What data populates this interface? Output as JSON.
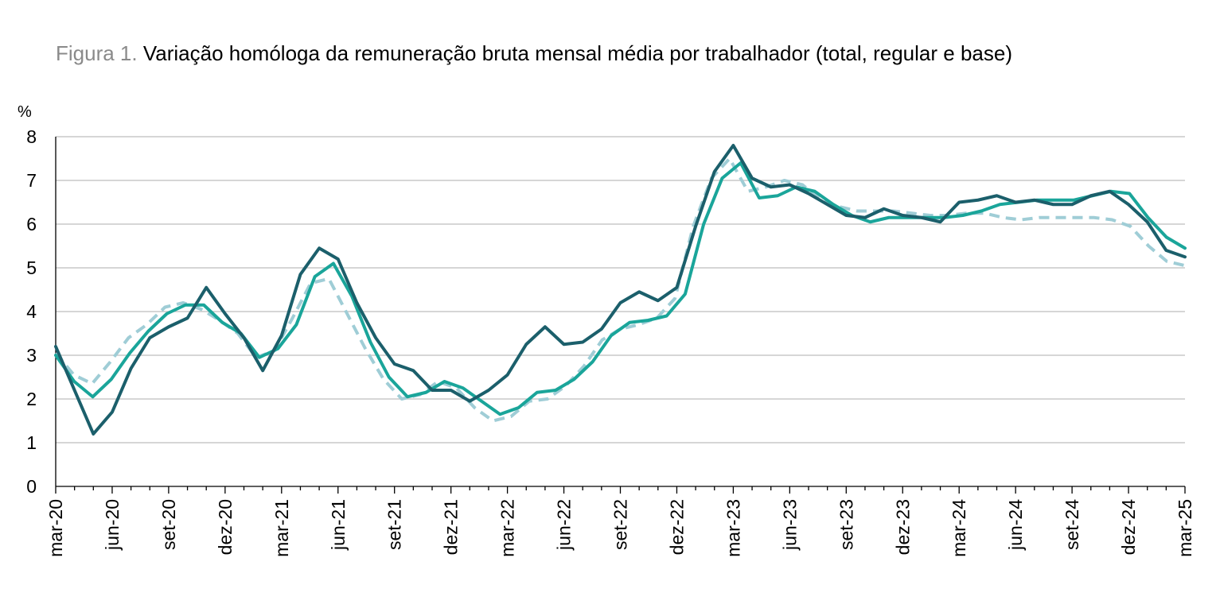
{
  "title_prefix": "Figura 1.",
  "title_main": "Variação homóloga da remuneração bruta mensal média por trabalhador (total, regular e base)",
  "colors": {
    "total": "#1b5f6b",
    "regular": "#1aa59a",
    "base": "#9fcdd6",
    "grid": "#bdbdbd",
    "axis": "#000000"
  },
  "chart_data": {
    "type": "line",
    "ylabel": "%",
    "ylim": [
      0,
      8
    ],
    "y_ticks": [
      "0",
      "1",
      "2",
      "3",
      "4",
      "5",
      "6",
      "7",
      "8"
    ],
    "x_tick_labels": [
      "mar-20",
      "jun-20",
      "set-20",
      "dez-20",
      "mar-21",
      "jun-21",
      "set-21",
      "dez-21",
      "mar-22",
      "jun-22",
      "set-22",
      "dez-22",
      "mar-23",
      "jun-23",
      "set-23",
      "dez-23",
      "mar-24",
      "jun-24",
      "set-24",
      "dez-24",
      "mar-25"
    ],
    "x_start": "mar-20",
    "x_end": "mar-25",
    "grid": true,
    "series": [
      {
        "key": "total",
        "style": "solid",
        "values": [
          3.2,
          2.2,
          1.2,
          1.7,
          2.7,
          3.4,
          3.65,
          3.85,
          4.55,
          3.95,
          3.4,
          2.65,
          3.45,
          4.85,
          5.45,
          5.2,
          4.2,
          3.4,
          2.8,
          2.65,
          2.2,
          2.2,
          1.95,
          2.2,
          2.55,
          3.25,
          3.65,
          3.25,
          3.3,
          3.6,
          4.2,
          4.45,
          4.25,
          4.55,
          5.95,
          7.2,
          7.8,
          7.05,
          6.85,
          6.9,
          6.7,
          6.45,
          6.2,
          6.15,
          6.35,
          6.2,
          6.15,
          6.05,
          6.5,
          6.55,
          6.65,
          6.5,
          6.55,
          6.45,
          6.45,
          6.65,
          6.75,
          6.45,
          6.05,
          5.4,
          5.25
        ]
      },
      {
        "key": "regular",
        "style": "solid",
        "values": [
          3.0,
          2.4,
          2.05,
          2.45,
          3.05,
          3.55,
          3.95,
          4.15,
          4.15,
          3.75,
          3.5,
          2.95,
          3.15,
          3.7,
          4.8,
          5.1,
          4.35,
          3.3,
          2.5,
          2.05,
          2.15,
          2.4,
          2.25,
          1.95,
          1.65,
          1.8,
          2.15,
          2.2,
          2.45,
          2.85,
          3.45,
          3.75,
          3.8,
          3.9,
          4.4,
          6.0,
          7.05,
          7.4,
          6.6,
          6.65,
          6.85,
          6.75,
          6.45,
          6.2,
          6.05,
          6.15,
          6.15,
          6.15,
          6.15,
          6.2,
          6.3,
          6.45,
          6.5,
          6.55,
          6.55,
          6.55,
          6.65,
          6.75,
          6.7,
          6.15,
          5.7,
          5.45
        ]
      },
      {
        "key": "base",
        "style": "dashed",
        "values": [
          3.05,
          2.55,
          2.35,
          2.85,
          3.4,
          3.7,
          4.1,
          4.2,
          4.05,
          3.8,
          3.5,
          2.95,
          3.1,
          3.85,
          4.65,
          4.75,
          3.95,
          3.15,
          2.45,
          2.0,
          2.1,
          2.4,
          2.25,
          1.8,
          1.5,
          1.6,
          1.95,
          2.0,
          2.3,
          2.75,
          3.35,
          3.6,
          3.7,
          3.85,
          4.3,
          5.95,
          7.05,
          7.5,
          6.75,
          6.85,
          7.0,
          6.9,
          6.55,
          6.4,
          6.3,
          6.3,
          6.3,
          6.25,
          6.2,
          6.2,
          6.25,
          6.25,
          6.15,
          6.1,
          6.15,
          6.15,
          6.15,
          6.15,
          6.1,
          5.95,
          5.5,
          5.15,
          5.05
        ]
      }
    ]
  }
}
